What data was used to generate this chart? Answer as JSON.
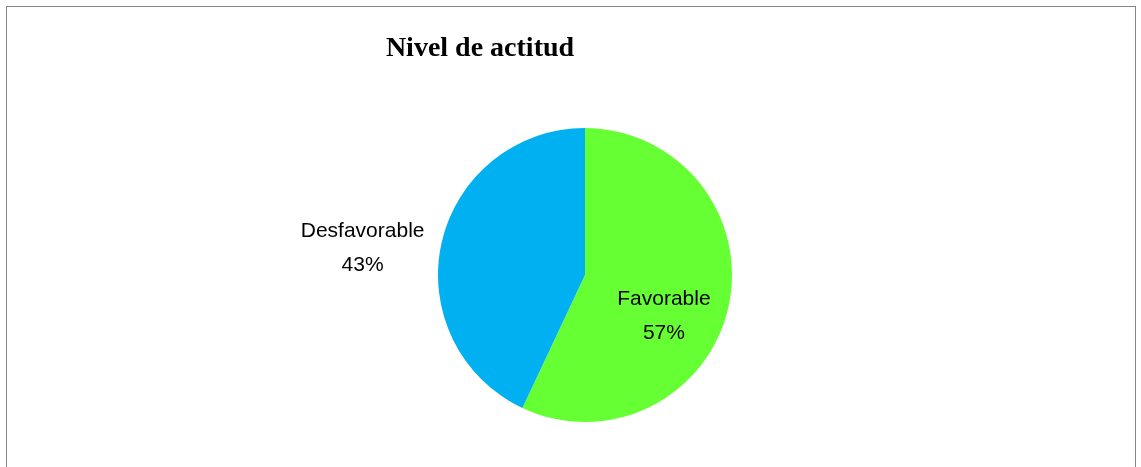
{
  "chart_data": {
    "type": "pie",
    "title": "Nivel de actitud",
    "categories": [
      "Favorable",
      "Desfavorable"
    ],
    "values": [
      57,
      43
    ],
    "colors": [
      "#66ff33",
      "#00b0f0"
    ],
    "value_labels": [
      "57%",
      "43%"
    ]
  }
}
